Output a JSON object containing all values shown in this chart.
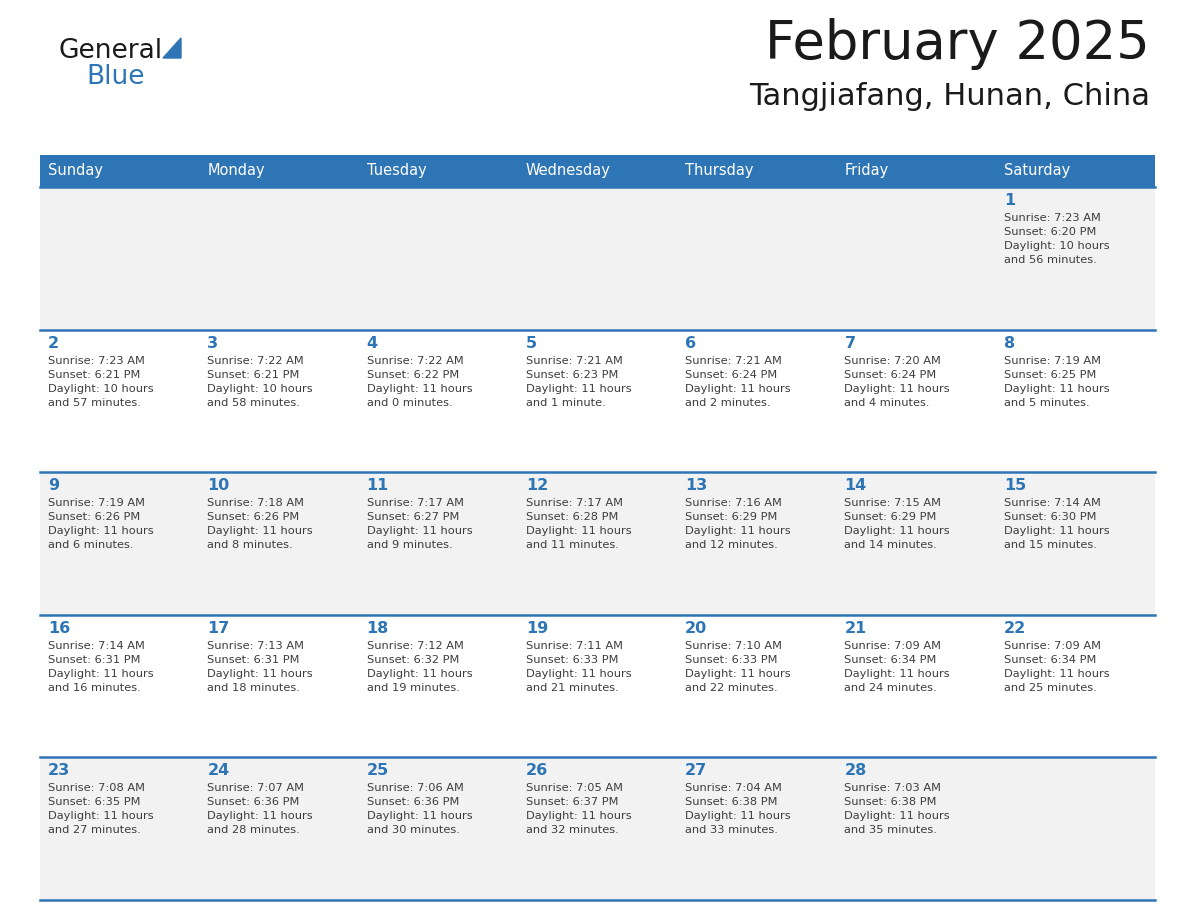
{
  "title": "February 2025",
  "subtitle": "Tangjiafang, Hunan, China",
  "header_bg_color": "#2E75B6",
  "header_text_color": "#FFFFFF",
  "day_names": [
    "Sunday",
    "Monday",
    "Tuesday",
    "Wednesday",
    "Thursday",
    "Friday",
    "Saturday"
  ],
  "title_font_size": 38,
  "subtitle_font_size": 22,
  "row_bg_colors": [
    "#F2F2F2",
    "#FFFFFF"
  ],
  "separator_color": "#2E75B6",
  "day_number_color": "#2E75B6",
  "text_color": "#3D3D3D",
  "logo_general_color": "#1a1a1a",
  "logo_blue_color": "#2E75B6",
  "logo_triangle_color": "#2E75B6",
  "calendar": [
    [
      {
        "day": "",
        "info": ""
      },
      {
        "day": "",
        "info": ""
      },
      {
        "day": "",
        "info": ""
      },
      {
        "day": "",
        "info": ""
      },
      {
        "day": "",
        "info": ""
      },
      {
        "day": "",
        "info": ""
      },
      {
        "day": "1",
        "info": "Sunrise: 7:23 AM\nSunset: 6:20 PM\nDaylight: 10 hours\nand 56 minutes."
      }
    ],
    [
      {
        "day": "2",
        "info": "Sunrise: 7:23 AM\nSunset: 6:21 PM\nDaylight: 10 hours\nand 57 minutes."
      },
      {
        "day": "3",
        "info": "Sunrise: 7:22 AM\nSunset: 6:21 PM\nDaylight: 10 hours\nand 58 minutes."
      },
      {
        "day": "4",
        "info": "Sunrise: 7:22 AM\nSunset: 6:22 PM\nDaylight: 11 hours\nand 0 minutes."
      },
      {
        "day": "5",
        "info": "Sunrise: 7:21 AM\nSunset: 6:23 PM\nDaylight: 11 hours\nand 1 minute."
      },
      {
        "day": "6",
        "info": "Sunrise: 7:21 AM\nSunset: 6:24 PM\nDaylight: 11 hours\nand 2 minutes."
      },
      {
        "day": "7",
        "info": "Sunrise: 7:20 AM\nSunset: 6:24 PM\nDaylight: 11 hours\nand 4 minutes."
      },
      {
        "day": "8",
        "info": "Sunrise: 7:19 AM\nSunset: 6:25 PM\nDaylight: 11 hours\nand 5 minutes."
      }
    ],
    [
      {
        "day": "9",
        "info": "Sunrise: 7:19 AM\nSunset: 6:26 PM\nDaylight: 11 hours\nand 6 minutes."
      },
      {
        "day": "10",
        "info": "Sunrise: 7:18 AM\nSunset: 6:26 PM\nDaylight: 11 hours\nand 8 minutes."
      },
      {
        "day": "11",
        "info": "Sunrise: 7:17 AM\nSunset: 6:27 PM\nDaylight: 11 hours\nand 9 minutes."
      },
      {
        "day": "12",
        "info": "Sunrise: 7:17 AM\nSunset: 6:28 PM\nDaylight: 11 hours\nand 11 minutes."
      },
      {
        "day": "13",
        "info": "Sunrise: 7:16 AM\nSunset: 6:29 PM\nDaylight: 11 hours\nand 12 minutes."
      },
      {
        "day": "14",
        "info": "Sunrise: 7:15 AM\nSunset: 6:29 PM\nDaylight: 11 hours\nand 14 minutes."
      },
      {
        "day": "15",
        "info": "Sunrise: 7:14 AM\nSunset: 6:30 PM\nDaylight: 11 hours\nand 15 minutes."
      }
    ],
    [
      {
        "day": "16",
        "info": "Sunrise: 7:14 AM\nSunset: 6:31 PM\nDaylight: 11 hours\nand 16 minutes."
      },
      {
        "day": "17",
        "info": "Sunrise: 7:13 AM\nSunset: 6:31 PM\nDaylight: 11 hours\nand 18 minutes."
      },
      {
        "day": "18",
        "info": "Sunrise: 7:12 AM\nSunset: 6:32 PM\nDaylight: 11 hours\nand 19 minutes."
      },
      {
        "day": "19",
        "info": "Sunrise: 7:11 AM\nSunset: 6:33 PM\nDaylight: 11 hours\nand 21 minutes."
      },
      {
        "day": "20",
        "info": "Sunrise: 7:10 AM\nSunset: 6:33 PM\nDaylight: 11 hours\nand 22 minutes."
      },
      {
        "day": "21",
        "info": "Sunrise: 7:09 AM\nSunset: 6:34 PM\nDaylight: 11 hours\nand 24 minutes."
      },
      {
        "day": "22",
        "info": "Sunrise: 7:09 AM\nSunset: 6:34 PM\nDaylight: 11 hours\nand 25 minutes."
      }
    ],
    [
      {
        "day": "23",
        "info": "Sunrise: 7:08 AM\nSunset: 6:35 PM\nDaylight: 11 hours\nand 27 minutes."
      },
      {
        "day": "24",
        "info": "Sunrise: 7:07 AM\nSunset: 6:36 PM\nDaylight: 11 hours\nand 28 minutes."
      },
      {
        "day": "25",
        "info": "Sunrise: 7:06 AM\nSunset: 6:36 PM\nDaylight: 11 hours\nand 30 minutes."
      },
      {
        "day": "26",
        "info": "Sunrise: 7:05 AM\nSunset: 6:37 PM\nDaylight: 11 hours\nand 32 minutes."
      },
      {
        "day": "27",
        "info": "Sunrise: 7:04 AM\nSunset: 6:38 PM\nDaylight: 11 hours\nand 33 minutes."
      },
      {
        "day": "28",
        "info": "Sunrise: 7:03 AM\nSunset: 6:38 PM\nDaylight: 11 hours\nand 35 minutes."
      },
      {
        "day": "",
        "info": ""
      }
    ]
  ]
}
